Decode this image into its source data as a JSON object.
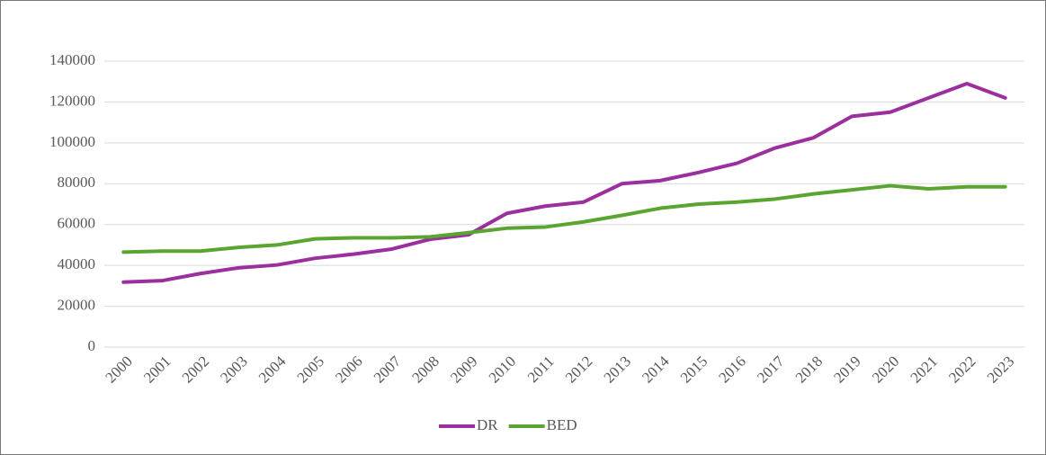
{
  "chart_data": {
    "type": "line",
    "categories": [
      "2000",
      "2001",
      "2002",
      "2003",
      "2004",
      "2005",
      "2006",
      "2007",
      "2008",
      "2009",
      "2010",
      "2011",
      "2012",
      "2013",
      "2014",
      "2015",
      "2016",
      "2017",
      "2018",
      "2019",
      "2020",
      "2021",
      "2022",
      "2023"
    ],
    "series": [
      {
        "name": "DR",
        "color": "#9b2f9e",
        "values": [
          31800,
          32500,
          36000,
          38800,
          40200,
          43500,
          45500,
          48000,
          52800,
          55000,
          65500,
          69000,
          71000,
          80000,
          81500,
          85500,
          90000,
          97500,
          102500,
          113000,
          115000,
          122000,
          129000,
          122000
        ]
      },
      {
        "name": "BED",
        "color": "#5aa532",
        "values": [
          46500,
          47000,
          47000,
          48800,
          50000,
          53000,
          53500,
          53500,
          54000,
          56000,
          58200,
          58800,
          61300,
          64500,
          68000,
          70000,
          71000,
          72500,
          75000,
          77000,
          79000,
          77500,
          78500,
          78500
        ]
      }
    ],
    "ylim": [
      0,
      140000
    ],
    "yticks": [
      0,
      20000,
      40000,
      60000,
      80000,
      100000,
      120000,
      140000
    ],
    "grid": true,
    "legend": "bottom"
  }
}
